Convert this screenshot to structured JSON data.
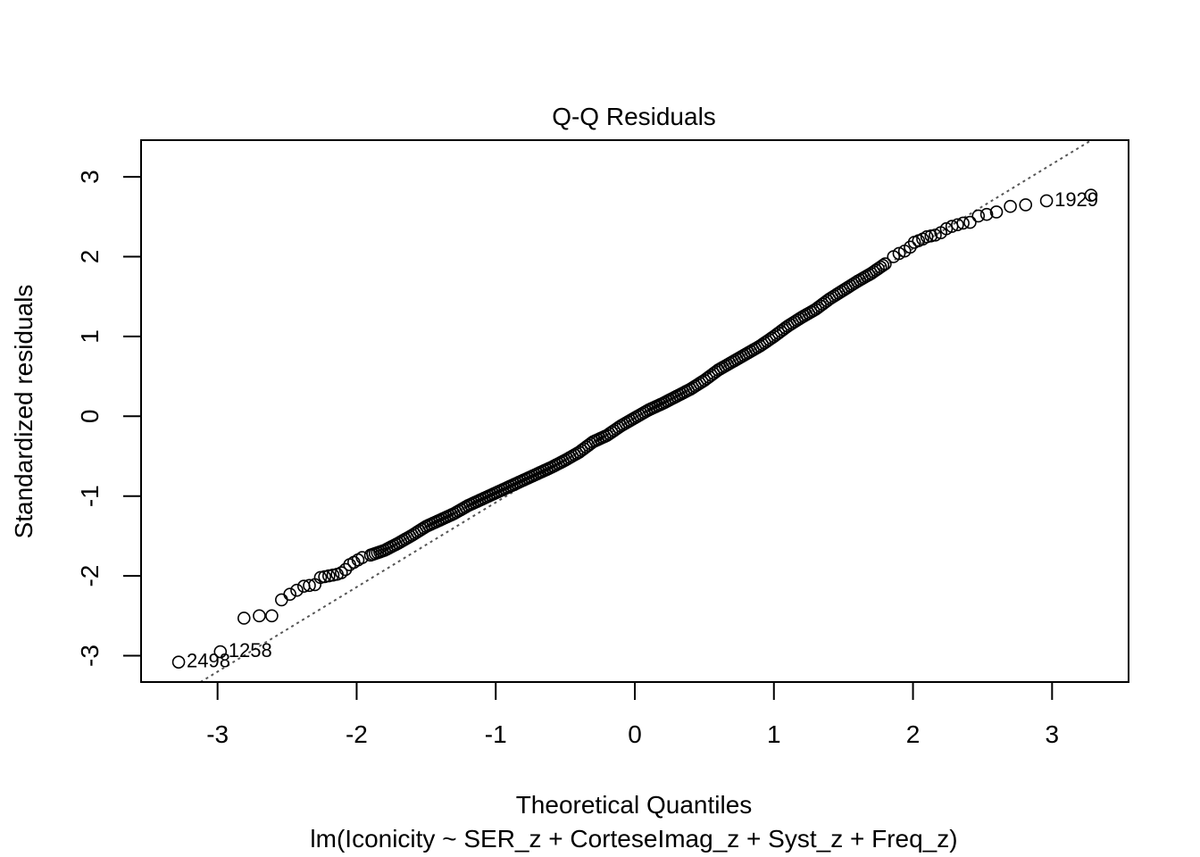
{
  "chart_data": {
    "type": "scatter",
    "title": "Q-Q Residuals",
    "xlabel": "Theoretical Quantiles",
    "subtitle": "lm(Iconicity ~ SER_z + CorteseImag_z + Syst_z + Freq_z)",
    "ylabel": "Standardized residuals",
    "xlim": [
      -3.55,
      3.55
    ],
    "ylim": [
      -3.33,
      3.46
    ],
    "xticks": [
      -3,
      -2,
      -1,
      0,
      1,
      2,
      3
    ],
    "yticks": [
      -3,
      -2,
      -1,
      0,
      1,
      2,
      3
    ],
    "xtick_labels": [
      "-3",
      "-2",
      "-1",
      "0",
      "1",
      "2",
      "3"
    ],
    "ytick_labels": [
      "-3",
      "-2",
      "-1",
      "0",
      "1",
      "2",
      "3"
    ],
    "grid": false,
    "reference_line": {
      "style": "dotted",
      "color": "#555555",
      "slope": 1.06,
      "intercept": -0.02
    },
    "tail_low": [
      [
        -3.28,
        -3.08
      ],
      [
        -2.98,
        -2.95
      ],
      [
        -2.81,
        -2.53
      ],
      [
        -2.7,
        -2.5
      ],
      [
        -2.61,
        -2.5
      ],
      [
        -2.54,
        -2.3
      ],
      [
        -2.48,
        -2.23
      ],
      [
        -2.43,
        -2.18
      ],
      [
        -2.38,
        -2.13
      ],
      [
        -2.34,
        -2.12
      ],
      [
        -2.3,
        -2.11
      ],
      [
        -2.26,
        -2.02
      ],
      [
        -2.23,
        -2.01
      ],
      [
        -2.2,
        -2.0
      ],
      [
        -2.17,
        -1.99
      ],
      [
        -2.14,
        -1.98
      ],
      [
        -2.11,
        -1.96
      ],
      [
        -2.08,
        -1.92
      ],
      [
        -2.05,
        -1.86
      ],
      [
        -2.02,
        -1.83
      ],
      [
        -1.99,
        -1.8
      ],
      [
        -1.96,
        -1.77
      ]
    ],
    "body": [
      [
        -1.9,
        -1.74
      ],
      [
        -1.8,
        -1.68
      ],
      [
        -1.7,
        -1.59
      ],
      [
        -1.6,
        -1.49
      ],
      [
        -1.5,
        -1.38
      ],
      [
        -1.4,
        -1.3
      ],
      [
        -1.3,
        -1.22
      ],
      [
        -1.2,
        -1.12
      ],
      [
        -1.1,
        -1.04
      ],
      [
        -1.0,
        -0.96
      ],
      [
        -0.9,
        -0.88
      ],
      [
        -0.8,
        -0.8
      ],
      [
        -0.7,
        -0.72
      ],
      [
        -0.6,
        -0.64
      ],
      [
        -0.5,
        -0.55
      ],
      [
        -0.4,
        -0.45
      ],
      [
        -0.3,
        -0.32
      ],
      [
        -0.2,
        -0.24
      ],
      [
        -0.1,
        -0.12
      ],
      [
        0.0,
        -0.02
      ],
      [
        0.1,
        0.08
      ],
      [
        0.2,
        0.16
      ],
      [
        0.3,
        0.25
      ],
      [
        0.4,
        0.34
      ],
      [
        0.5,
        0.45
      ],
      [
        0.6,
        0.58
      ],
      [
        0.7,
        0.68
      ],
      [
        0.8,
        0.78
      ],
      [
        0.9,
        0.88
      ],
      [
        1.0,
        1.0
      ],
      [
        1.1,
        1.13
      ],
      [
        1.2,
        1.24
      ],
      [
        1.3,
        1.34
      ],
      [
        1.4,
        1.47
      ],
      [
        1.5,
        1.58
      ],
      [
        1.6,
        1.69
      ],
      [
        1.7,
        1.79
      ],
      [
        1.8,
        1.91
      ]
    ],
    "tail_high": [
      [
        1.86,
        2.0
      ],
      [
        1.9,
        2.04
      ],
      [
        1.94,
        2.07
      ],
      [
        1.98,
        2.12
      ],
      [
        2.01,
        2.18
      ],
      [
        2.04,
        2.2
      ],
      [
        2.07,
        2.22
      ],
      [
        2.1,
        2.25
      ],
      [
        2.13,
        2.26
      ],
      [
        2.16,
        2.27
      ],
      [
        2.2,
        2.3
      ],
      [
        2.24,
        2.35
      ],
      [
        2.28,
        2.38
      ],
      [
        2.32,
        2.4
      ],
      [
        2.36,
        2.42
      ],
      [
        2.41,
        2.43
      ],
      [
        2.47,
        2.51
      ],
      [
        2.53,
        2.53
      ],
      [
        2.6,
        2.56
      ],
      [
        2.7,
        2.63
      ],
      [
        2.81,
        2.65
      ],
      [
        2.96,
        2.7
      ],
      [
        3.28,
        2.77
      ]
    ],
    "annotations": [
      {
        "text": "2498",
        "x": -3.28,
        "y": -3.08
      },
      {
        "text": "1258",
        "x": -2.98,
        "y": -2.95
      },
      {
        "text": "1929",
        "x": 2.96,
        "y": 2.7
      }
    ]
  }
}
